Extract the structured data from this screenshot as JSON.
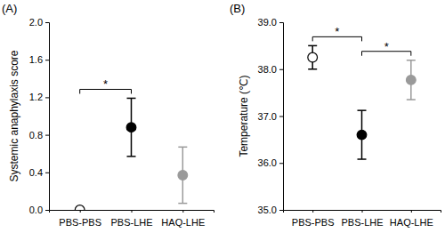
{
  "chart_data": [
    {
      "type": "dot",
      "title": "(A)",
      "y_label": "Systemic anaphylaxis score",
      "categories": [
        "PBS-PBS",
        "PBS-LHE",
        "HAQ-LHE"
      ],
      "values": [
        0,
        0.88,
        0.37
      ],
      "errors": [
        0,
        0.31,
        0.3
      ],
      "colors": [
        "#ffffff",
        "#000000",
        "#9a9a9a"
      ],
      "marker": "circle",
      "ylim": [
        0,
        2
      ],
      "yticks": [
        {
          "value": 0,
          "label": "0.0"
        },
        {
          "value": 0.4,
          "label": "0.4"
        },
        {
          "value": 0.8,
          "label": "0.8"
        },
        {
          "value": 1.2,
          "label": "1.2"
        },
        {
          "value": 1.6,
          "label": "1.6"
        },
        {
          "value": 2,
          "label": "2.0"
        }
      ],
      "significance": [
        {
          "pair": [
            0,
            1
          ],
          "label": "*"
        }
      ]
    },
    {
      "type": "dot",
      "title": "(B)",
      "y_label": "Temperature (℃)",
      "categories": [
        "PBS-PBS",
        "PBS-LHE",
        "HAQ-LHE"
      ],
      "values": [
        38.25,
        36.6,
        37.77
      ],
      "errors": [
        0.25,
        0.52,
        0.42
      ],
      "colors": [
        "#ffffff",
        "#000000",
        "#9a9a9a"
      ],
      "marker": "circle",
      "ylim": [
        35,
        39
      ],
      "yticks": [
        {
          "value": 35,
          "label": "35.0"
        },
        {
          "value": 36,
          "label": "36.0"
        },
        {
          "value": 37,
          "label": "37.0"
        },
        {
          "value": 38,
          "label": "38.0"
        },
        {
          "value": 39,
          "label": "39.0"
        }
      ],
      "significance": [
        {
          "pair": [
            0,
            1
          ],
          "label": "*"
        },
        {
          "pair": [
            1,
            2
          ],
          "label": "*"
        }
      ]
    }
  ]
}
